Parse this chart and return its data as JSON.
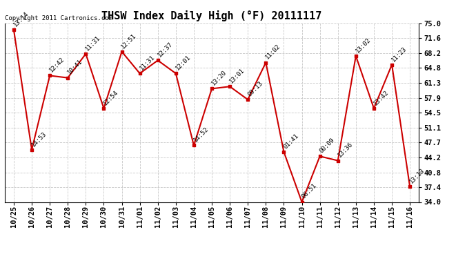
{
  "title": "THSW Index Daily High (°F) 20111117",
  "copyright": "Copyright 2011 Cartronics.com",
  "x_labels": [
    "10/25",
    "10/26",
    "10/27",
    "10/28",
    "10/29",
    "10/30",
    "10/31",
    "11/01",
    "11/02",
    "11/03",
    "11/04",
    "11/05",
    "11/06",
    "11/07",
    "11/08",
    "11/09",
    "11/10",
    "11/11",
    "11/12",
    "11/13",
    "11/14",
    "11/15",
    "11/16"
  ],
  "y_values": [
    73.5,
    46.0,
    63.0,
    62.5,
    68.0,
    55.5,
    68.5,
    63.5,
    66.5,
    63.5,
    47.0,
    60.0,
    60.5,
    57.5,
    66.0,
    45.5,
    34.0,
    44.5,
    43.5,
    67.5,
    55.5,
    65.5,
    37.5
  ],
  "point_labels": [
    "13:14",
    "14:53",
    "12:42",
    "10:41",
    "11:31",
    "12:54",
    "12:51",
    "11:31",
    "12:37",
    "12:01",
    "14:52",
    "13:20",
    "13:01",
    "09:13",
    "11:02",
    "01:41",
    "06:51",
    "00:09",
    "13:36",
    "13:02",
    "13:42",
    "11:23",
    "13:13"
  ],
  "line_color": "#cc0000",
  "marker_color": "#cc0000",
  "bg_color": "#ffffff",
  "grid_color": "#c8c8c8",
  "ylim_min": 34.0,
  "ylim_max": 75.0,
  "yticks": [
    34.0,
    37.4,
    40.8,
    44.2,
    47.7,
    51.1,
    54.5,
    57.9,
    61.3,
    64.8,
    68.2,
    71.6,
    75.0
  ],
  "title_fontsize": 11,
  "label_fontsize": 6.5,
  "tick_fontsize": 7.5,
  "copyright_fontsize": 6.5
}
